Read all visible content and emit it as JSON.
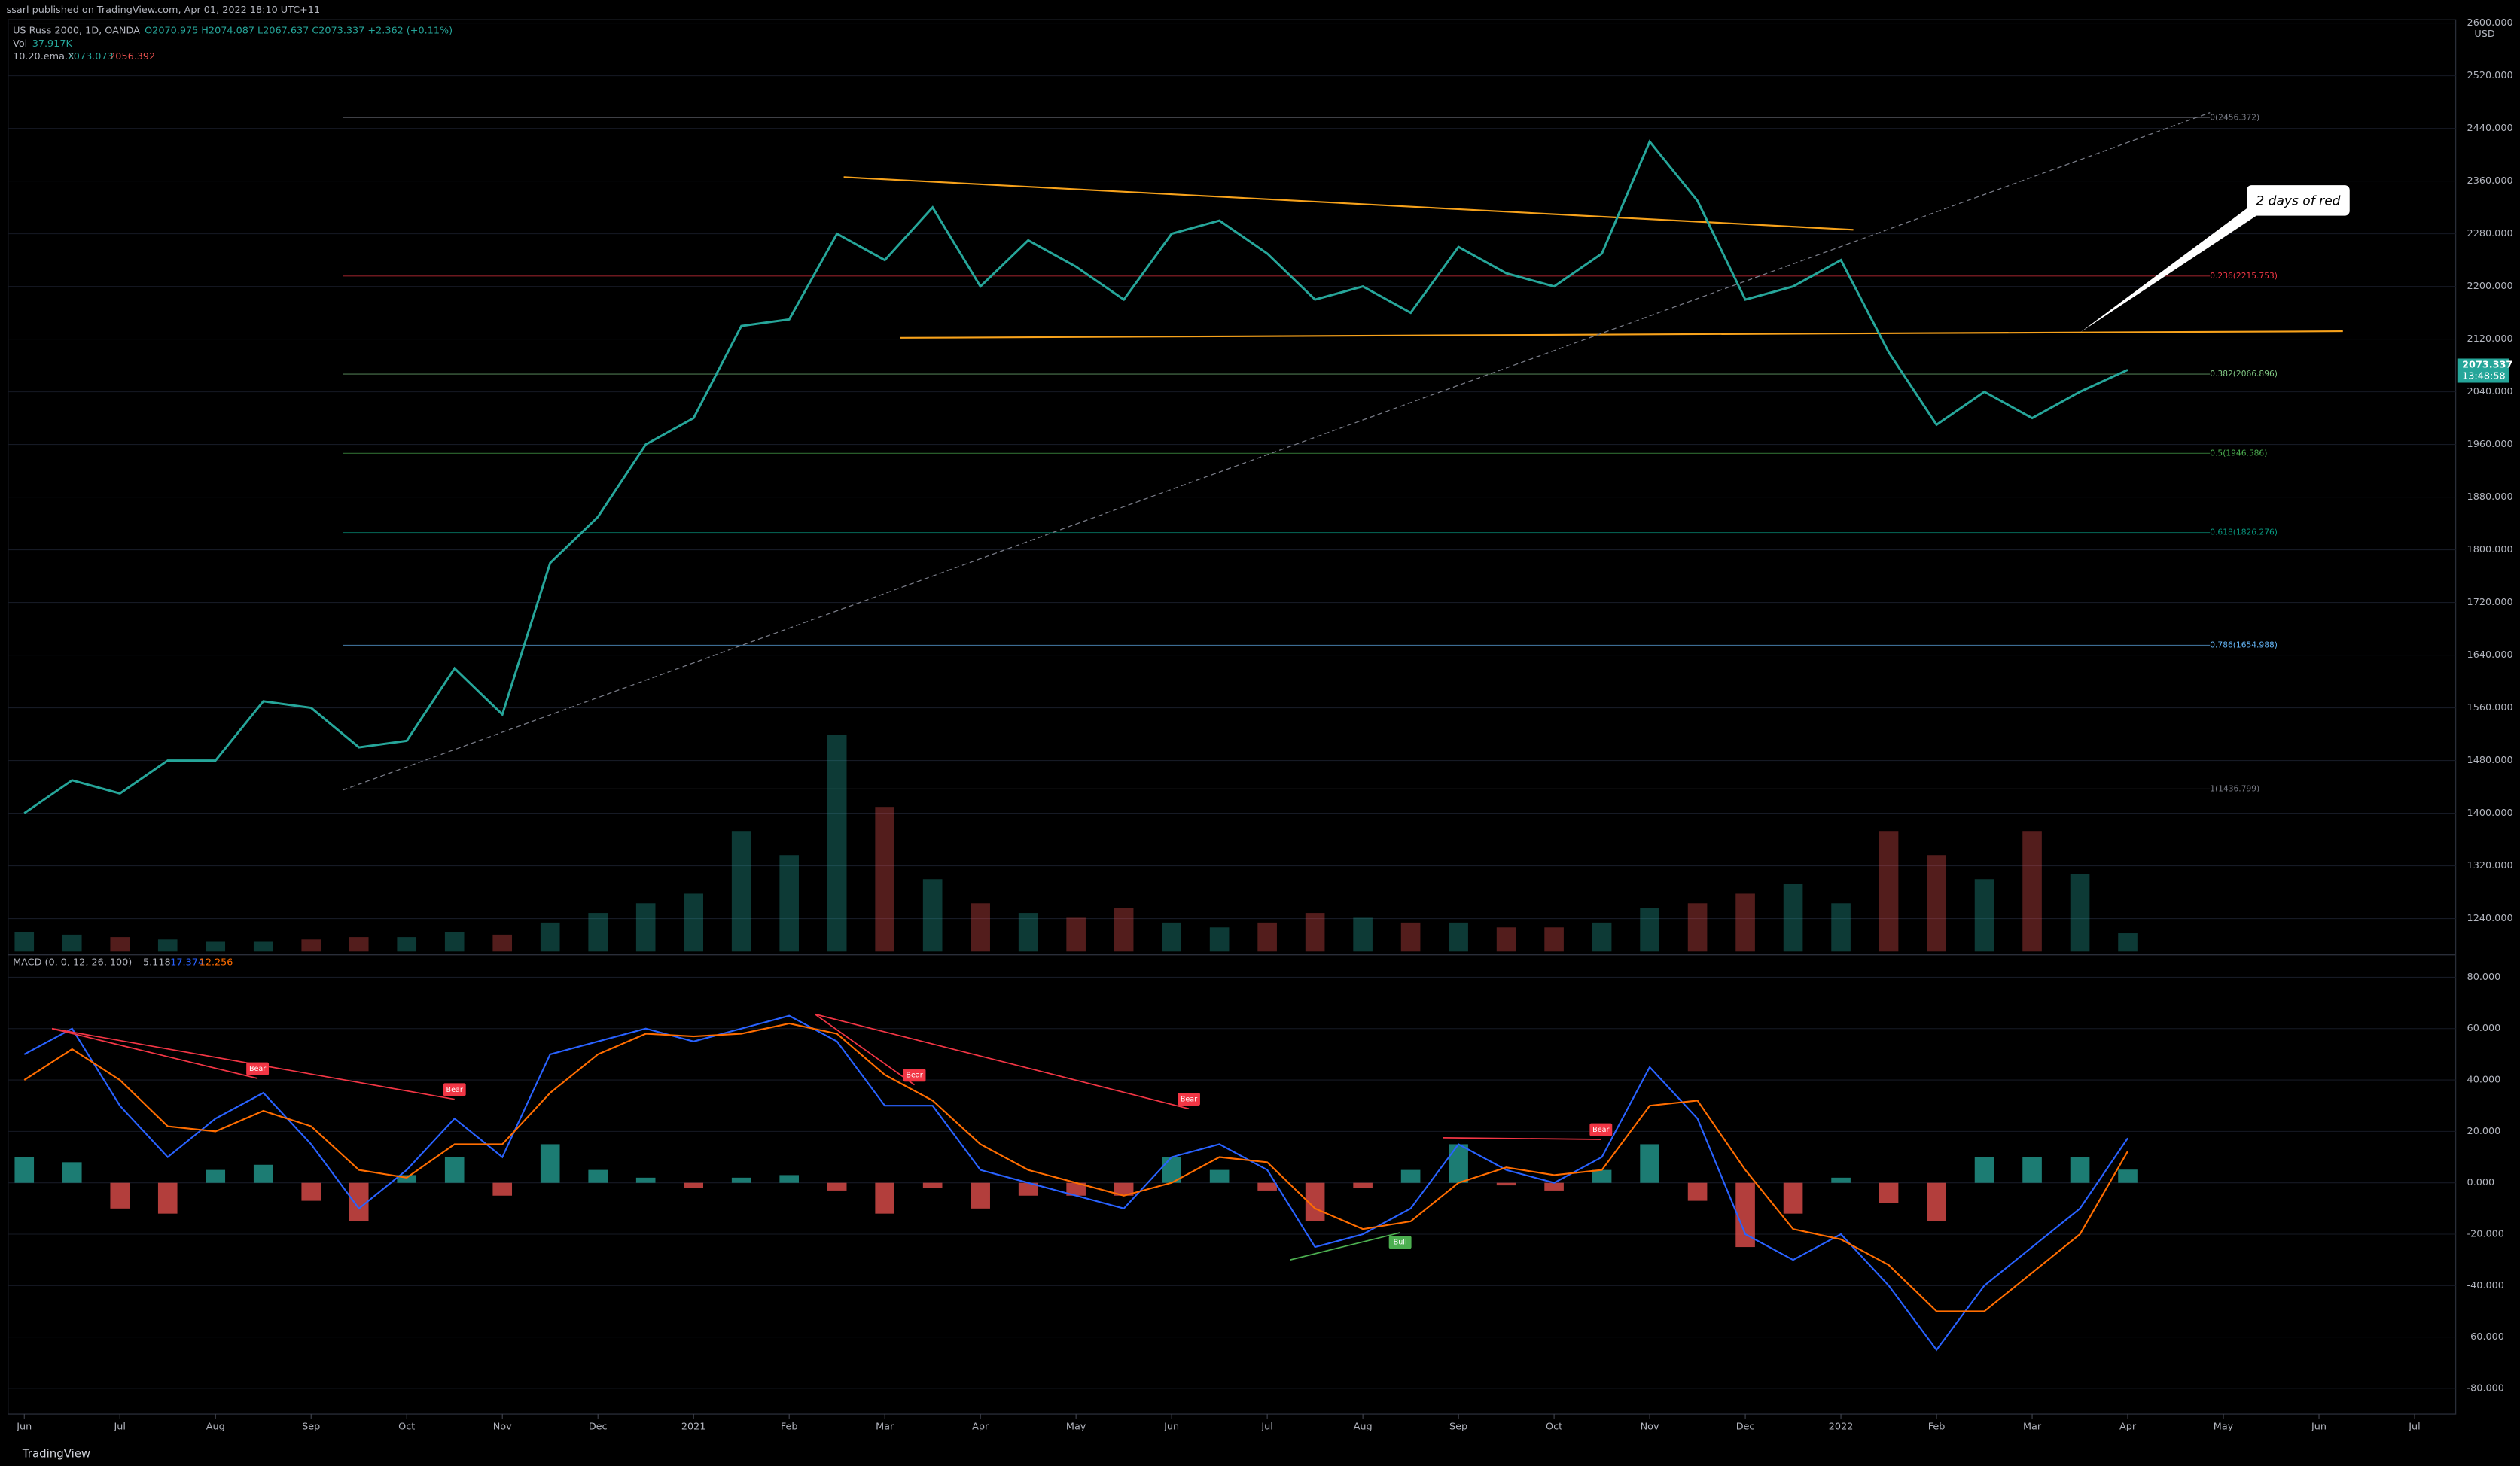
{
  "header": {
    "publisher": "ssarl published on TradingView.com, Apr 01, 2022 18:10 UTC+11",
    "symbol": "US Russ 2000, 1D, OANDA",
    "ohlc": "O2070.975 H2074.087 L2067.637 C2073.337 +2.362 (+0.11%)",
    "ema_name": "10.20.ema.X",
    "ema_values": [
      "2073.073",
      "2056.392"
    ],
    "countdown": "13:48:58",
    "brand": "TradingView"
  },
  "chart_data": [
    {
      "type": "line",
      "color": "#26a69a",
      "x": [
        0,
        0.5,
        1,
        1.5,
        2,
        2.5,
        3,
        3.5,
        4,
        4.5,
        5,
        5.5,
        6,
        6.5,
        7,
        7.5,
        8,
        8.5,
        9,
        9.5,
        10,
        10.5,
        11,
        11.5,
        12,
        12.5,
        13,
        13.5,
        14,
        14.5,
        15,
        15.5,
        16,
        16.5,
        17,
        17.5,
        18,
        18.5,
        19,
        19.5,
        20,
        20.5,
        21,
        21.5,
        22
      ],
      "values": [
        1400,
        1450,
        1430,
        1480,
        1480,
        1570,
        1560,
        1500,
        1510,
        1620,
        1550,
        1780,
        1850,
        1960,
        2000,
        2140,
        2150,
        2280,
        2240,
        2320,
        2200,
        2270,
        2230,
        2180,
        2280,
        2300,
        2250,
        2180,
        2200,
        2160,
        2260,
        2220,
        2200,
        2250,
        2420,
        2330,
        2180,
        2200,
        2240,
        2100,
        1990,
        2040,
        2000,
        2040,
        2073.337
      ],
      "xlim": [
        -0.17,
        25.43
      ],
      "ylim": [
        1190,
        2605
      ],
      "y_unit": "USD",
      "yticks": [
        {
          "value": 1240,
          "label": "1240.000"
        },
        {
          "value": 1320,
          "label": "1320.000"
        },
        {
          "value": 1400,
          "label": "1400.000"
        },
        {
          "value": 1480,
          "label": "1480.000"
        },
        {
          "value": 1560,
          "label": "1560.000"
        },
        {
          "value": 1640,
          "label": "1640.000"
        },
        {
          "value": 1720,
          "label": "1720.000"
        },
        {
          "value": 1800,
          "label": "1800.000"
        },
        {
          "value": 1880,
          "label": "1880.000"
        },
        {
          "value": 1960,
          "label": "1960.000"
        },
        {
          "value": 2040,
          "label": "2040.000"
        },
        {
          "value": 2120,
          "label": "2120.000"
        },
        {
          "value": 2200,
          "label": "2200.000"
        },
        {
          "value": 2280,
          "label": "2280.000"
        },
        {
          "value": 2360,
          "label": "2360.000"
        },
        {
          "value": 2440,
          "label": "2440.000"
        },
        {
          "value": 2520,
          "label": "2520.000"
        },
        {
          "value": 2600,
          "label": "2600.000"
        }
      ],
      "volume": {
        "name": "Vol",
        "color": "#26a69a",
        "value_label": "37.917K",
        "vlim": [
          0,
          600
        ],
        "values": [
          40,
          35,
          30,
          25,
          20,
          20,
          25,
          30,
          30,
          40,
          35,
          60,
          80,
          100,
          120,
          250,
          200,
          450,
          300,
          150,
          100,
          80,
          70,
          90,
          60,
          50,
          60,
          80,
          70,
          60,
          60,
          50,
          50,
          60,
          90,
          100,
          120,
          140,
          100,
          250,
          200,
          150,
          250,
          160,
          37.917
        ]
      },
      "fib": {
        "xlim": [
          3.33,
          22.86
        ],
        "levels": [
          {
            "label": "0(2456.372)",
            "value": 2456.372,
            "color": "#787b86"
          },
          {
            "label": "0.236(2215.753)",
            "value": 2215.753,
            "color": "#f23645"
          },
          {
            "label": "0.382(2066.896)",
            "value": 2066.896,
            "color": "#81c784"
          },
          {
            "label": "0.5(1946.586)",
            "value": 1946.586,
            "color": "#4caf50"
          },
          {
            "label": "0.618(1826.276)",
            "value": 1826.276,
            "color": "#089981"
          },
          {
            "label": "0.786(1654.988)",
            "value": 1654.988,
            "color": "#64b5f6"
          },
          {
            "label": "1(1436.799)",
            "value": 1436.799,
            "color": "#787b86"
          }
        ]
      },
      "trendlines": [
        {
          "color": "#f7a21b",
          "dashed": false,
          "points": [
            [
              8.57,
              2366
            ],
            [
              19.13,
              2286
            ]
          ]
        },
        {
          "color": "#f7a21b",
          "dashed": false,
          "points": [
            [
              9.16,
              2122
            ],
            [
              24.25,
              2132
            ]
          ]
        },
        {
          "color": "#787b86",
          "dashed": true,
          "points": [
            [
              3.33,
              1435
            ],
            [
              22.86,
              2464
            ]
          ]
        }
      ],
      "callout": {
        "text": "2 days of red",
        "point": [
          21.5,
          2130
        ]
      }
    },
    {
      "type": "macd",
      "title": "MACD (0, 0, 12, 26, 100)",
      "x": [
        0,
        0.5,
        1,
        1.5,
        2,
        2.5,
        3,
        3.5,
        4,
        4.5,
        5,
        5.5,
        6,
        6.5,
        7,
        7.5,
        8,
        8.5,
        9,
        9.5,
        10,
        10.5,
        11,
        11.5,
        12,
        12.5,
        13,
        13.5,
        14,
        14.5,
        15,
        15.5,
        16,
        16.5,
        17,
        17.5,
        18,
        18.5,
        19,
        19.5,
        20,
        20.5,
        21,
        21.5,
        22
      ],
      "xlim": [
        -0.17,
        25.43
      ],
      "ylim": [
        -88.75,
        87.5
      ],
      "yticks": [
        {
          "value": -80,
          "label": "-80.000"
        },
        {
          "value": -60,
          "label": "-60.000"
        },
        {
          "value": -40,
          "label": "-40.000"
        },
        {
          "value": -20,
          "label": "-20.000"
        },
        {
          "value": 0,
          "label": "0.000"
        },
        {
          "value": 20,
          "label": "20.000"
        },
        {
          "value": 40,
          "label": "40.000"
        },
        {
          "value": 60,
          "label": "60.000"
        },
        {
          "value": 80,
          "label": "80.000"
        }
      ],
      "xticks": [
        {
          "value": 0,
          "label": "Jun"
        },
        {
          "value": 1,
          "label": "Jul"
        },
        {
          "value": 2,
          "label": "Aug"
        },
        {
          "value": 3,
          "label": "Sep"
        },
        {
          "value": 4,
          "label": "Oct"
        },
        {
          "value": 5,
          "label": "Nov"
        },
        {
          "value": 6,
          "label": "Dec"
        },
        {
          "value": 7,
          "label": "2021"
        },
        {
          "value": 8,
          "label": "Feb"
        },
        {
          "value": 9,
          "label": "Mar"
        },
        {
          "value": 10,
          "label": "Apr"
        },
        {
          "value": 11,
          "label": "May"
        },
        {
          "value": 12,
          "label": "Jun"
        },
        {
          "value": 13,
          "label": "Jul"
        },
        {
          "value": 14,
          "label": "Aug"
        },
        {
          "value": 15,
          "label": "Sep"
        },
        {
          "value": 16,
          "label": "Oct"
        },
        {
          "value": 17,
          "label": "Nov"
        },
        {
          "value": 18,
          "label": "Dec"
        },
        {
          "value": 19,
          "label": "2022"
        },
        {
          "value": 20,
          "label": "Feb"
        },
        {
          "value": 21,
          "label": "Mar"
        },
        {
          "value": 22,
          "label": "Apr"
        },
        {
          "value": 23,
          "label": "May"
        },
        {
          "value": 24,
          "label": "Jun"
        },
        {
          "value": 25,
          "label": "Jul"
        }
      ],
      "histogram": {
        "color_up": "#26a69a",
        "color_down": "#ef5350",
        "values": [
          10,
          8,
          -10,
          -12,
          5,
          7,
          -7,
          -15,
          3,
          10,
          -5,
          15,
          5,
          2,
          -2,
          2,
          3,
          -3,
          -12,
          -2,
          -10,
          -5,
          -5,
          -5,
          10,
          5,
          -3,
          -15,
          -2,
          5,
          15,
          -1,
          -3,
          5,
          15,
          -7,
          -25,
          -12,
          2,
          -8,
          -15,
          10,
          10,
          10,
          5.118
        ]
      },
      "macd": {
        "color": "#2962ff",
        "values": [
          50,
          60,
          30,
          10,
          25,
          35,
          15,
          -10,
          5,
          25,
          10,
          50,
          55,
          60,
          55,
          60,
          65,
          55,
          30,
          30,
          5,
          0,
          -5,
          -10,
          10,
          15,
          5,
          -25,
          -20,
          -10,
          15,
          5,
          0,
          10,
          45,
          25,
          -20,
          -30,
          -20,
          -40,
          -65,
          -40,
          -25,
          -10,
          17.374
        ]
      },
      "signal": {
        "color": "#ff6d00",
        "values": [
          40,
          52,
          40,
          22,
          20,
          28,
          22,
          5,
          2,
          15,
          15,
          35,
          50,
          58,
          57,
          58,
          62,
          58,
          42,
          32,
          15,
          5,
          0,
          -5,
          0,
          10,
          8,
          -10,
          -18,
          -15,
          0,
          6,
          3,
          5,
          30,
          32,
          5,
          -18,
          -22,
          -32,
          -50,
          -50,
          -35,
          -20,
          12.256
        ]
      },
      "annotations": [
        {
          "label": "Bear",
          "color": "#f23645",
          "points": [
            [
              0.29,
              60
            ],
            [
              2.44,
              40.6
            ]
          ]
        },
        {
          "label": "Bear",
          "color": "#f23645",
          "points": [
            [
              0.29,
              60
            ],
            [
              4.5,
              32.5
            ]
          ]
        },
        {
          "label": "Bear",
          "color": "#f23645",
          "points": [
            [
              8.27,
              65.6
            ],
            [
              9.31,
              38.1
            ]
          ]
        },
        {
          "label": "Bear",
          "color": "#f23645",
          "points": [
            [
              8.27,
              65.6
            ],
            [
              12.18,
              28.8
            ]
          ]
        },
        {
          "label": "Bear",
          "color": "#f23645",
          "points": [
            [
              14.84,
              17.5
            ],
            [
              16.49,
              16.9
            ]
          ]
        },
        {
          "label": "Bull",
          "color": "#4caf50",
          "points": [
            [
              13.24,
              -30
            ],
            [
              14.39,
              -19.4
            ]
          ]
        }
      ]
    }
  ]
}
